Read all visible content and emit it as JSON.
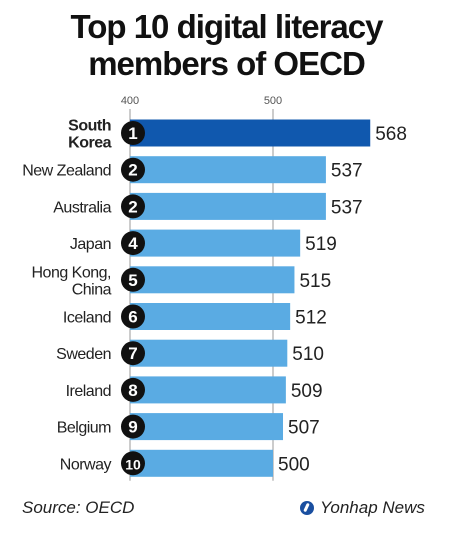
{
  "title": {
    "line1": "Top 10 digital literacy",
    "line2": "members of OECD"
  },
  "colors": {
    "highlight_bar": "#1058ae",
    "bar": "#5aabe3",
    "badge": "#111111",
    "badge_text": "#ffffff",
    "gridline": "#999999"
  },
  "chart_data": {
    "type": "bar",
    "orientation": "horizontal",
    "title": "Top 10 digital literacy members of OECD",
    "x_ticks": [
      "400",
      "500"
    ],
    "xlim": [
      400,
      568
    ],
    "categories": [
      "South Korea",
      "New Zealand",
      "Australia",
      "Japan",
      "Hong Kong, China",
      "Iceland",
      "Sweden",
      "Ireland",
      "Belgium",
      "Norway"
    ],
    "category_lines": [
      [
        "South",
        "Korea"
      ],
      [
        "New Zealand"
      ],
      [
        "Australia"
      ],
      [
        "Japan"
      ],
      [
        "Hong Kong,",
        "China"
      ],
      [
        "Iceland"
      ],
      [
        "Sweden"
      ],
      [
        "Ireland"
      ],
      [
        "Belgium"
      ],
      [
        "Norway"
      ]
    ],
    "bold_categories": [
      "South Korea"
    ],
    "ranks": [
      "1",
      "2",
      "2",
      "4",
      "5",
      "6",
      "7",
      "8",
      "9",
      "10"
    ],
    "values": [
      568,
      537,
      537,
      519,
      515,
      512,
      510,
      509,
      507,
      500
    ],
    "value_labels": [
      "568",
      "537",
      "537",
      "519",
      "515",
      "512",
      "510",
      "509",
      "507",
      "500"
    ],
    "highlight_index": 0,
    "grid": true
  },
  "footer": {
    "source": "Source: OECD",
    "credit": "Yonhap News"
  }
}
